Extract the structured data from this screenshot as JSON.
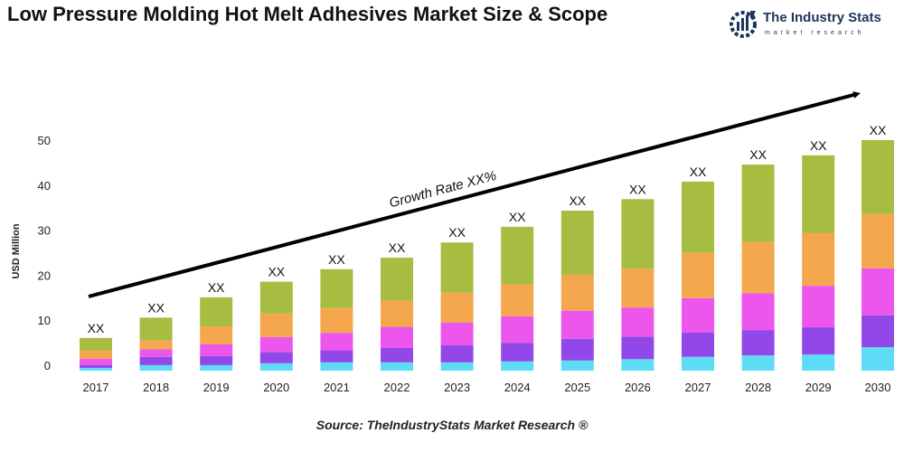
{
  "title": "Low Pressure Molding Hot Melt Adhesives Market Size & Scope",
  "logo": {
    "name": "The Industry Stats",
    "tagline": "market research"
  },
  "source": "Source: TheIndustryStats Market Research ®",
  "chart_data": {
    "type": "bar",
    "stacked": true,
    "ylabel": "USD Million",
    "xlabel": "",
    "ylim": [
      0,
      50
    ],
    "yticks": [
      0,
      10,
      20,
      30,
      40,
      50
    ],
    "grid": false,
    "categories": [
      "2017",
      "2018",
      "2019",
      "2020",
      "2021",
      "2022",
      "2023",
      "2024",
      "2025",
      "2026",
      "2027",
      "2028",
      "2029",
      "2030"
    ],
    "series": [
      {
        "color": "#5ddcf5",
        "values": [
          0.6,
          1.2,
          1.2,
          1.6,
          1.8,
          1.8,
          1.8,
          2.0,
          2.2,
          2.5,
          3.0,
          3.3,
          3.5,
          5.1
        ]
      },
      {
        "color": "#9248e8",
        "values": [
          0.6,
          1.8,
          2.0,
          2.4,
          2.6,
          3.1,
          3.7,
          4.0,
          4.7,
          4.9,
          5.3,
          5.5,
          5.9,
          6.9
        ]
      },
      {
        "color": "#ec56ec",
        "values": [
          1.4,
          1.6,
          2.5,
          3.3,
          3.8,
          4.6,
          4.9,
          5.8,
          6.1,
          6.3,
          7.4,
          8.0,
          9.0,
          10.2
        ]
      },
      {
        "color": "#f4a74c",
        "values": [
          1.8,
          2.0,
          3.9,
          5.1,
          5.4,
          5.7,
          6.5,
          6.9,
          7.8,
          8.4,
          9.9,
          11.1,
          11.5,
          11.8
        ]
      },
      {
        "color": "#a6bd42",
        "values": [
          2.7,
          4.9,
          6.3,
          6.9,
          8.4,
          9.3,
          10.9,
          12.5,
          13.9,
          15.1,
          15.4,
          16.8,
          16.8,
          16.0
        ]
      }
    ],
    "data_labels": [
      "XX",
      "XX",
      "XX",
      "XX",
      "XX",
      "XX",
      "XX",
      "XX",
      "XX",
      "XX",
      "XX",
      "XX",
      "XX",
      "XX"
    ],
    "annotation": "Growth Rate XX%"
  }
}
